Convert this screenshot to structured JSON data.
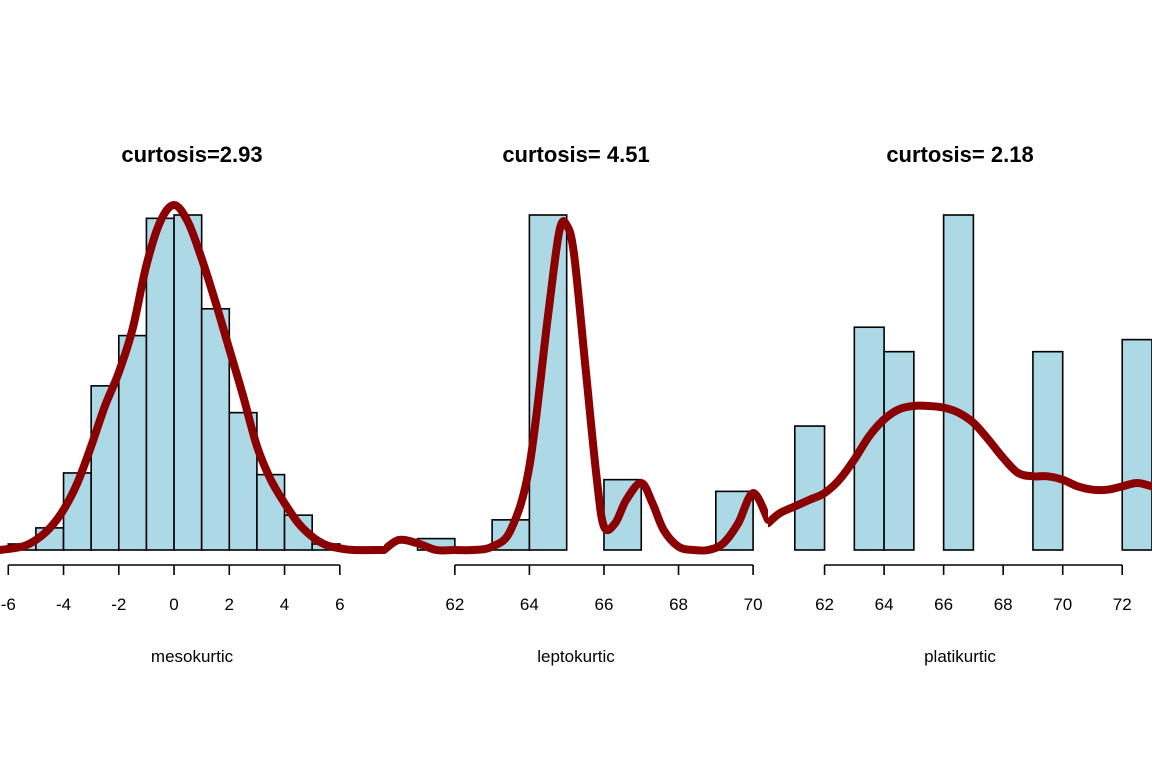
{
  "chart_data": [
    {
      "type": "bar",
      "title": "curtosis=2.93",
      "xlabel": "mesokurtic",
      "ylabel": "",
      "x_ticks": [
        -6,
        -4,
        -2,
        0,
        2,
        4,
        6
      ],
      "xlim": [
        -6.3,
        7.6
      ],
      "ylim": [
        0,
        1
      ],
      "bin_edges": [
        -6,
        -5,
        -4,
        -3,
        -2,
        -1,
        0,
        1,
        2,
        3,
        4,
        5,
        6
      ],
      "values": [
        0.018,
        0.066,
        0.23,
        0.49,
        0.64,
        0.99,
        1.0,
        0.72,
        0.41,
        0.225,
        0.104,
        0.018
      ],
      "density_curve": {
        "x": [
          -6.3,
          -5.5,
          -5,
          -4.5,
          -4,
          -3.5,
          -3,
          -2.5,
          -2,
          -1.5,
          -1,
          -0.5,
          0,
          0.5,
          1,
          1.5,
          2,
          2.5,
          3,
          3.5,
          4,
          4.5,
          5,
          5.5,
          6,
          6.5,
          7.6
        ],
        "y": [
          0.0,
          0.01,
          0.03,
          0.065,
          0.12,
          0.2,
          0.31,
          0.43,
          0.53,
          0.66,
          0.85,
          0.98,
          1.03,
          0.98,
          0.87,
          0.74,
          0.6,
          0.46,
          0.31,
          0.21,
          0.14,
          0.08,
          0.04,
          0.015,
          0.005,
          0.0,
          0.0
        ],
        "color": "#8b0000"
      },
      "bar_color": "#add8e6",
      "grid": false
    },
    {
      "type": "bar",
      "title": "curtosis= 4.51",
      "xlabel": "leptokurtic",
      "ylabel": "",
      "x_ticks": [
        62,
        64,
        66,
        68,
        70
      ],
      "xlim": [
        60.1,
        70.4
      ],
      "ylim": [
        0,
        1
      ],
      "bin_edges": [
        60,
        61,
        62,
        63,
        64,
        65,
        66,
        67,
        68,
        69,
        70
      ],
      "values": [
        0.0,
        0.034,
        0.0,
        0.09,
        1.0,
        0.0,
        0.21,
        0.0,
        0.0,
        0.175
      ],
      "density_curve": {
        "x": [
          60.1,
          60.5,
          61,
          61.5,
          62,
          62.5,
          63,
          63.5,
          64,
          64.5,
          64.8,
          65,
          65.2,
          65.5,
          65.8,
          66,
          66.3,
          66.6,
          67,
          67.3,
          67.6,
          68,
          68.4,
          68.8,
          69.2,
          69.6,
          70,
          70.4
        ],
        "y": [
          0.0,
          0.03,
          0.02,
          0.0,
          0.0,
          0.0,
          0.01,
          0.06,
          0.25,
          0.7,
          0.95,
          0.97,
          0.88,
          0.55,
          0.22,
          0.07,
          0.08,
          0.15,
          0.2,
          0.14,
          0.06,
          0.01,
          0.0,
          0.0,
          0.02,
          0.08,
          0.17,
          0.09
        ],
        "color": "#8b0000"
      },
      "bar_color": "#add8e6",
      "grid": false
    },
    {
      "type": "bar",
      "title": "curtosis= 2.18",
      "xlabel": "platikurtic",
      "ylabel": "",
      "x_ticks": [
        62,
        64,
        66,
        68,
        70,
        72
      ],
      "xlim": [
        60.1,
        73.0
      ],
      "ylim": [
        0,
        1
      ],
      "bin_edges": [
        61,
        62,
        63,
        64,
        65,
        66,
        67,
        68,
        69,
        70,
        71,
        72,
        73
      ],
      "values": [
        0.37,
        0.0,
        0.665,
        0.592,
        0.0,
        1.0,
        0.0,
        0.0,
        0.592,
        0.0,
        0.0,
        0.628
      ],
      "density_curve": {
        "x": [
          60.1,
          60.5,
          61,
          61.5,
          62,
          62.5,
          63,
          63.5,
          64,
          64.5,
          65,
          65.5,
          66,
          66.5,
          67,
          67.5,
          68,
          68.5,
          69,
          69.5,
          70,
          70.5,
          71,
          71.5,
          72,
          72.5,
          73
        ],
        "y": [
          0.08,
          0.11,
          0.13,
          0.15,
          0.17,
          0.21,
          0.27,
          0.34,
          0.39,
          0.42,
          0.43,
          0.43,
          0.425,
          0.41,
          0.38,
          0.33,
          0.275,
          0.23,
          0.22,
          0.22,
          0.21,
          0.19,
          0.18,
          0.18,
          0.19,
          0.2,
          0.19
        ],
        "color": "#8b0000"
      },
      "bar_color": "#add8e6",
      "grid": false
    }
  ]
}
